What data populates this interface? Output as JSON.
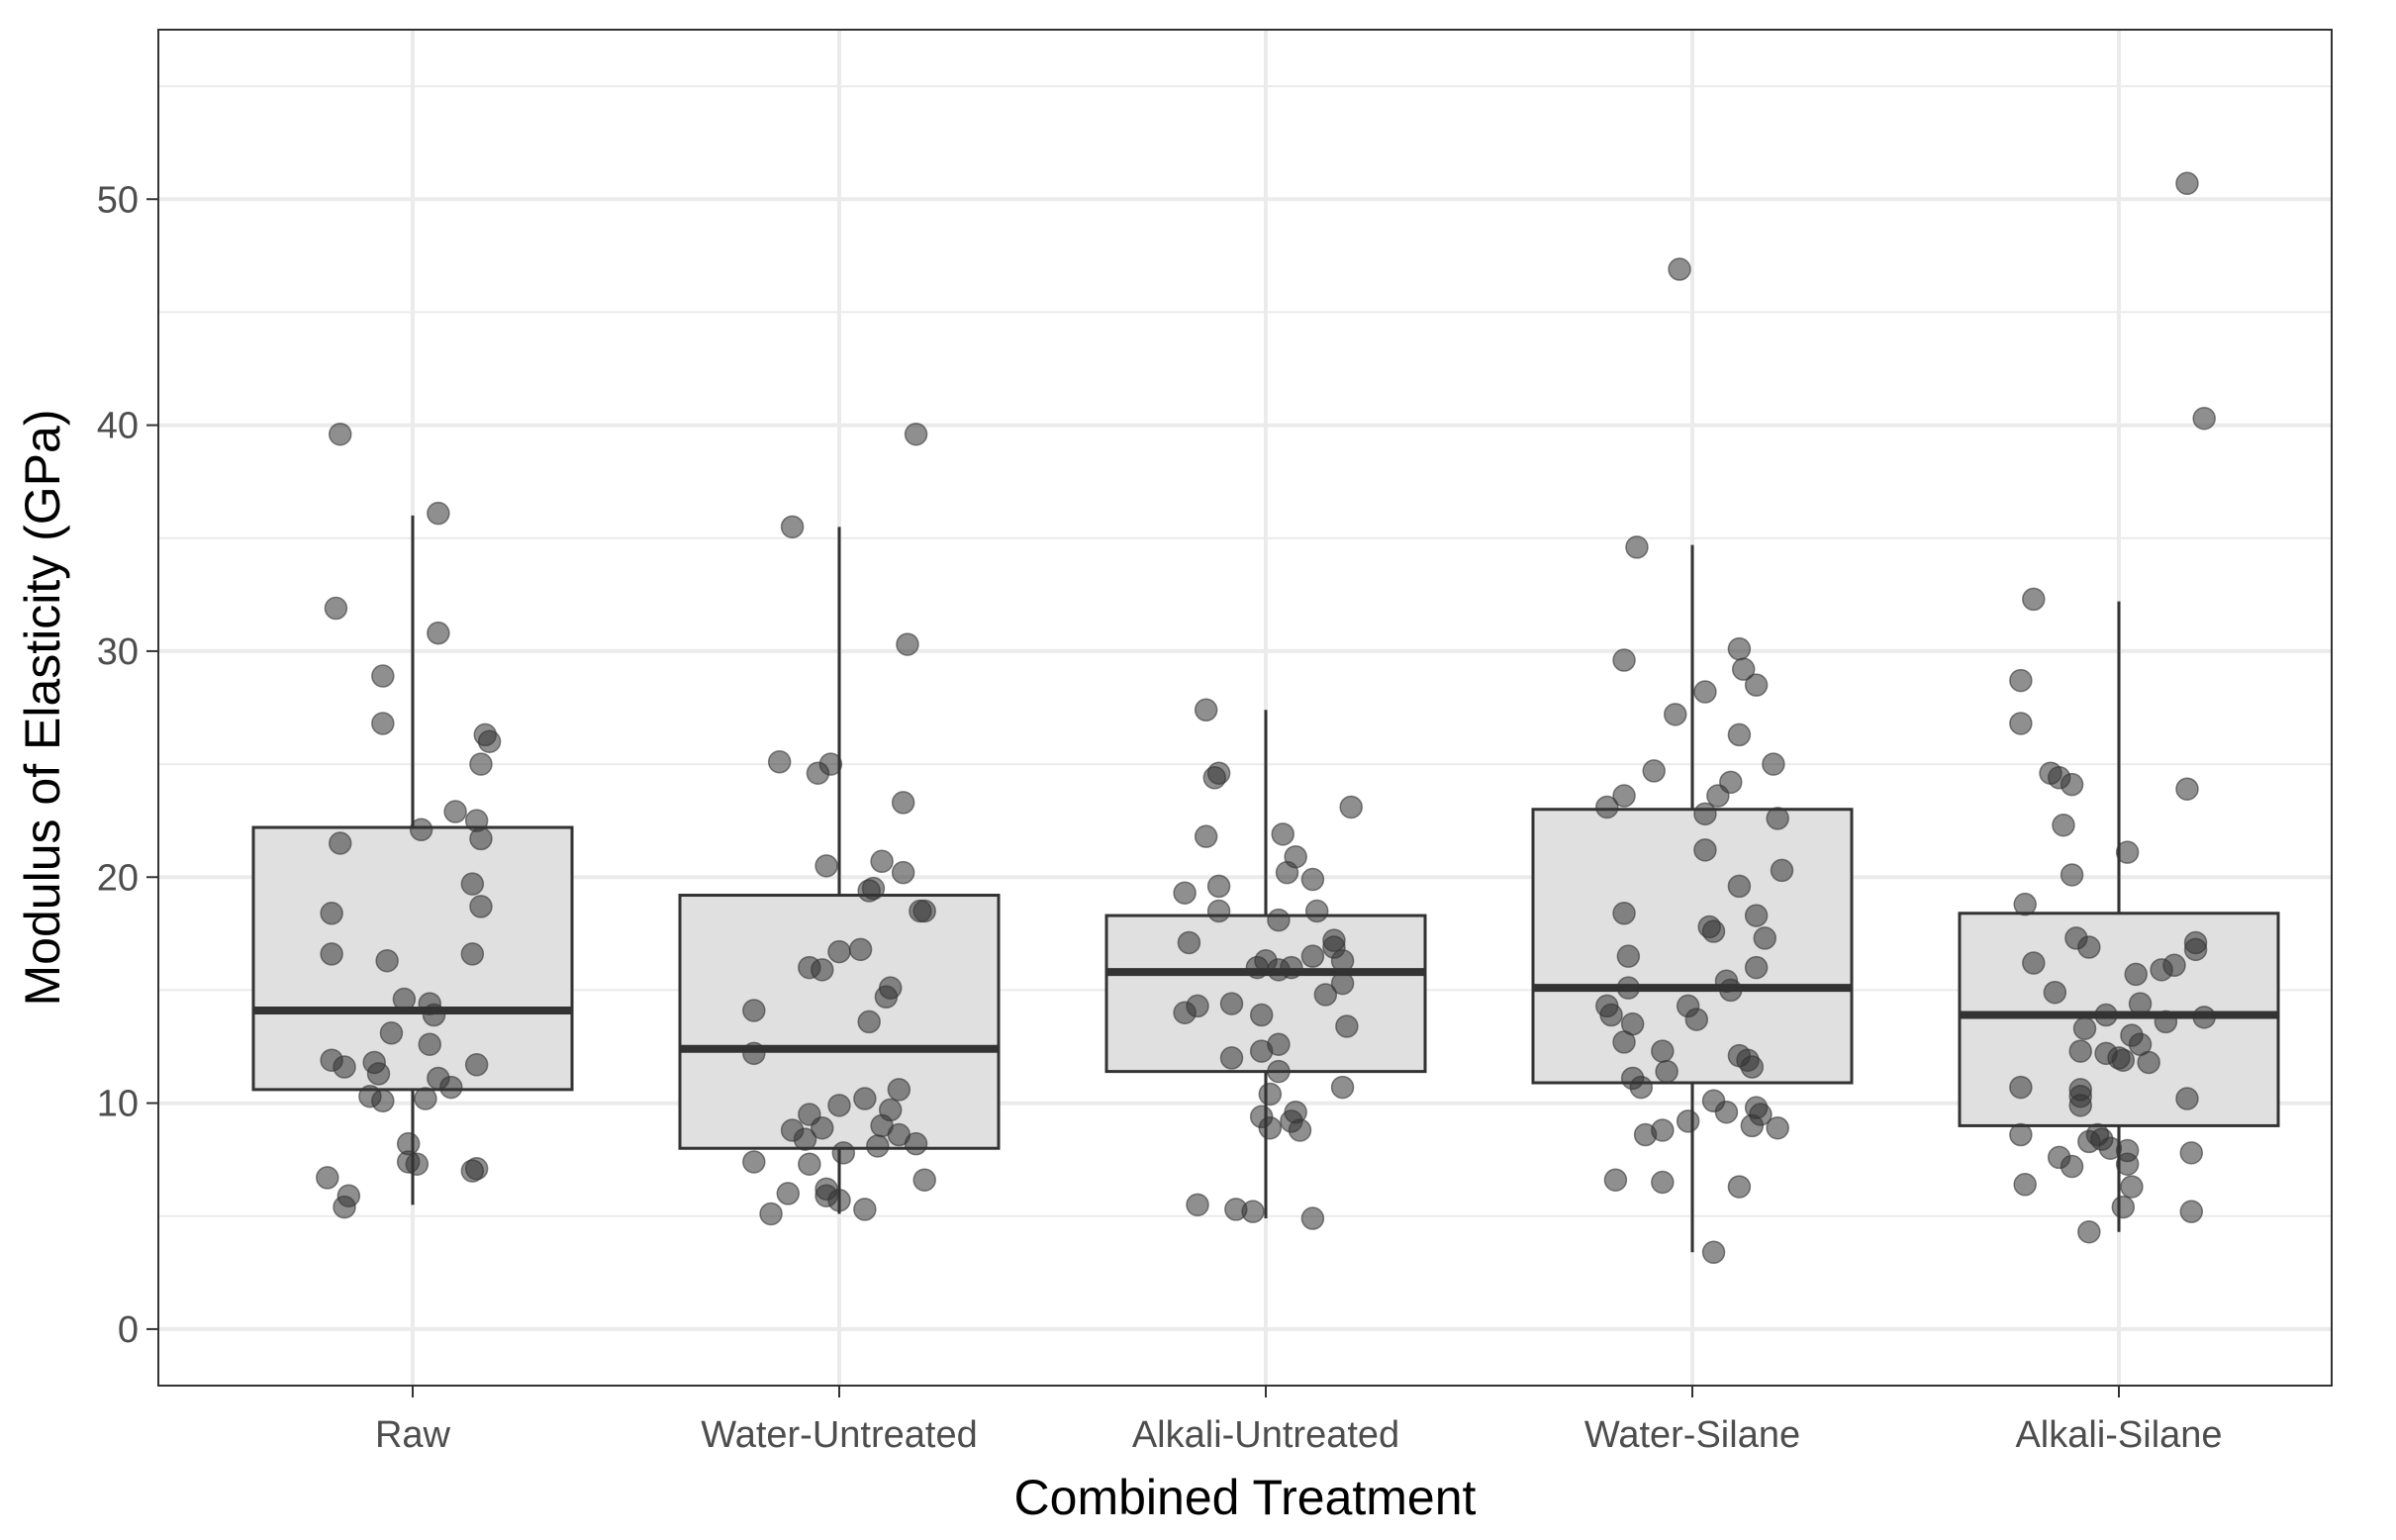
{
  "chart_data": {
    "type": "boxplot",
    "title": "",
    "xlabel": "Combined Treatment",
    "ylabel": "Modulus of Elasticity (GPa)",
    "ylim": [
      -2.5,
      57.5
    ],
    "yticks": [
      0,
      10,
      20,
      30,
      40,
      50
    ],
    "ytick_labels": [
      "0",
      "10",
      "20",
      "30",
      "40",
      "50"
    ],
    "y_minor_ticks": [
      5,
      15,
      25,
      35,
      45,
      55
    ],
    "grid": true,
    "theme": "bw",
    "colors": {
      "box_fill": "#e0e0e0",
      "box_stroke": "#333333",
      "point": "#333333",
      "grid": "#ebebeb",
      "panel_border": "#333333"
    },
    "categories": [
      "Raw",
      "Water-Untreated",
      "Alkali-Untreated",
      "Water-Silane",
      "Alkali-Silane"
    ],
    "boxes": [
      {
        "name": "Raw",
        "whisker_low": 5.5,
        "q1": 10.6,
        "median": 14.1,
        "q3": 22.2,
        "whisker_high": 36.0
      },
      {
        "name": "Water-Untreated",
        "whisker_low": 5.1,
        "q1": 8.0,
        "median": 12.4,
        "q3": 19.2,
        "whisker_high": 35.5
      },
      {
        "name": "Alkali-Untreated",
        "whisker_low": 4.9,
        "q1": 11.4,
        "median": 15.8,
        "q3": 18.3,
        "whisker_high": 27.4
      },
      {
        "name": "Water-Silane",
        "whisker_low": 3.4,
        "q1": 10.9,
        "median": 15.1,
        "q3": 23.0,
        "whisker_high": 34.7
      },
      {
        "name": "Alkali-Silane",
        "whisker_low": 4.3,
        "q1": 9.0,
        "median": 13.9,
        "q3": 18.4,
        "whisker_high": 32.2
      }
    ],
    "points": [
      {
        "group": "Raw",
        "values": [
          [
            -0.17,
            39.6
          ],
          [
            0.06,
            36.1
          ],
          [
            -0.18,
            31.9
          ],
          [
            0.06,
            30.8
          ],
          [
            -0.07,
            26.8
          ],
          [
            0.17,
            26.3
          ],
          [
            0.18,
            26.0
          ],
          [
            0.16,
            25.0
          ],
          [
            -0.07,
            28.9
          ],
          [
            -0.17,
            21.5
          ],
          [
            0.15,
            22.5
          ],
          [
            0.16,
            21.7
          ],
          [
            0.1,
            22.9
          ],
          [
            0.02,
            22.1
          ],
          [
            -0.19,
            18.4
          ],
          [
            0.14,
            19.7
          ],
          [
            0.16,
            18.7
          ],
          [
            -0.19,
            16.6
          ],
          [
            -0.06,
            16.3
          ],
          [
            0.14,
            16.6
          ],
          [
            -0.02,
            14.6
          ],
          [
            0.04,
            14.4
          ],
          [
            0.05,
            13.9
          ],
          [
            -0.05,
            13.1
          ],
          [
            0.04,
            12.6
          ],
          [
            -0.19,
            11.9
          ],
          [
            -0.16,
            11.6
          ],
          [
            -0.09,
            11.8
          ],
          [
            -0.08,
            11.3
          ],
          [
            0.15,
            11.7
          ],
          [
            0.06,
            11.1
          ],
          [
            0.09,
            10.7
          ],
          [
            -0.1,
            10.3
          ],
          [
            -0.07,
            10.1
          ],
          [
            0.03,
            10.2
          ],
          [
            -0.01,
            8.2
          ],
          [
            -0.01,
            7.4
          ],
          [
            0.01,
            7.3
          ],
          [
            0.14,
            7.0
          ],
          [
            0.15,
            7.1
          ],
          [
            -0.2,
            6.7
          ],
          [
            -0.15,
            5.9
          ],
          [
            -0.16,
            5.4
          ]
        ]
      },
      {
        "group": "Water-Untreated",
        "values": [
          [
            0.18,
            39.6
          ],
          [
            -0.11,
            35.5
          ],
          [
            0.16,
            30.3
          ],
          [
            -0.14,
            25.1
          ],
          [
            -0.05,
            24.6
          ],
          [
            -0.02,
            25.0
          ],
          [
            0.15,
            23.3
          ],
          [
            -0.03,
            20.5
          ],
          [
            0.1,
            20.7
          ],
          [
            0.15,
            20.2
          ],
          [
            0.07,
            19.4
          ],
          [
            0.08,
            19.5
          ],
          [
            0.19,
            18.5
          ],
          [
            0.2,
            18.5
          ],
          [
            0.0,
            16.7
          ],
          [
            -0.07,
            16.0
          ],
          [
            -0.04,
            15.9
          ],
          [
            0.05,
            16.8
          ],
          [
            0.12,
            15.1
          ],
          [
            0.11,
            14.7
          ],
          [
            0.07,
            13.6
          ],
          [
            -0.2,
            14.1
          ],
          [
            -0.2,
            12.2
          ],
          [
            -0.07,
            9.5
          ],
          [
            0.0,
            9.9
          ],
          [
            0.06,
            10.2
          ],
          [
            0.12,
            9.7
          ],
          [
            0.14,
            10.6
          ],
          [
            -0.11,
            8.8
          ],
          [
            -0.04,
            8.9
          ],
          [
            -0.08,
            8.4
          ],
          [
            0.1,
            9.0
          ],
          [
            0.14,
            8.6
          ],
          [
            0.18,
            8.2
          ],
          [
            -0.07,
            7.3
          ],
          [
            0.01,
            7.8
          ],
          [
            0.09,
            8.1
          ],
          [
            -0.2,
            7.4
          ],
          [
            0.2,
            6.6
          ],
          [
            -0.03,
            6.2
          ],
          [
            -0.12,
            6.0
          ],
          [
            0.0,
            5.7
          ],
          [
            -0.03,
            5.9
          ],
          [
            0.06,
            5.3
          ],
          [
            -0.16,
            5.1
          ]
        ]
      },
      {
        "group": "Alkali-Untreated",
        "values": [
          [
            -0.14,
            27.4
          ],
          [
            -0.12,
            24.4
          ],
          [
            -0.11,
            24.6
          ],
          [
            0.04,
            21.9
          ],
          [
            -0.14,
            21.8
          ],
          [
            0.07,
            20.9
          ],
          [
            0.2,
            23.1
          ],
          [
            0.05,
            20.2
          ],
          [
            -0.11,
            19.6
          ],
          [
            -0.19,
            19.3
          ],
          [
            0.11,
            19.9
          ],
          [
            0.03,
            18.1
          ],
          [
            0.12,
            18.5
          ],
          [
            -0.11,
            18.5
          ],
          [
            -0.18,
            17.1
          ],
          [
            0.16,
            17.2
          ],
          [
            0.16,
            16.9
          ],
          [
            -0.02,
            16.0
          ],
          [
            0.0,
            16.3
          ],
          [
            0.06,
            16.0
          ],
          [
            0.11,
            16.5
          ],
          [
            0.18,
            16.3
          ],
          [
            0.18,
            15.3
          ],
          [
            0.14,
            14.8
          ],
          [
            0.03,
            15.9
          ],
          [
            -0.08,
            14.4
          ],
          [
            -0.01,
            13.9
          ],
          [
            -0.19,
            14.0
          ],
          [
            -0.16,
            14.3
          ],
          [
            0.19,
            13.4
          ],
          [
            0.03,
            12.6
          ],
          [
            -0.01,
            12.3
          ],
          [
            -0.08,
            12.0
          ],
          [
            0.03,
            11.4
          ],
          [
            0.18,
            10.7
          ],
          [
            0.01,
            10.4
          ],
          [
            0.07,
            9.6
          ],
          [
            0.06,
            9.2
          ],
          [
            0.08,
            8.8
          ],
          [
            0.01,
            8.9
          ],
          [
            -0.01,
            9.4
          ],
          [
            -0.16,
            5.5
          ],
          [
            -0.07,
            5.3
          ],
          [
            -0.03,
            5.2
          ],
          [
            0.11,
            4.9
          ]
        ]
      },
      {
        "group": "Water-Silane",
        "values": [
          [
            -0.03,
            46.9
          ],
          [
            -0.13,
            34.6
          ],
          [
            -0.16,
            29.6
          ],
          [
            0.11,
            30.1
          ],
          [
            0.12,
            29.2
          ],
          [
            0.15,
            28.5
          ],
          [
            0.03,
            28.2
          ],
          [
            -0.04,
            27.2
          ],
          [
            0.11,
            26.3
          ],
          [
            0.19,
            25.0
          ],
          [
            -0.09,
            24.7
          ],
          [
            0.09,
            24.2
          ],
          [
            0.06,
            23.6
          ],
          [
            -0.16,
            23.6
          ],
          [
            -0.2,
            23.1
          ],
          [
            0.03,
            22.8
          ],
          [
            0.2,
            22.6
          ],
          [
            0.21,
            20.3
          ],
          [
            0.03,
            21.2
          ],
          [
            0.11,
            19.6
          ],
          [
            0.15,
            18.3
          ],
          [
            0.04,
            17.8
          ],
          [
            0.05,
            17.6
          ],
          [
            0.17,
            17.3
          ],
          [
            -0.16,
            18.4
          ],
          [
            -0.15,
            16.5
          ],
          [
            0.15,
            16.0
          ],
          [
            -0.15,
            15.1
          ],
          [
            0.08,
            15.4
          ],
          [
            0.09,
            15.0
          ],
          [
            -0.01,
            14.3
          ],
          [
            0.01,
            13.7
          ],
          [
            -0.2,
            14.3
          ],
          [
            -0.19,
            13.9
          ],
          [
            -0.14,
            13.5
          ],
          [
            -0.16,
            12.7
          ],
          [
            -0.07,
            12.3
          ],
          [
            0.11,
            12.1
          ],
          [
            0.13,
            11.9
          ],
          [
            0.14,
            11.6
          ],
          [
            -0.06,
            11.4
          ],
          [
            -0.14,
            11.1
          ],
          [
            -0.12,
            10.7
          ],
          [
            0.05,
            10.1
          ],
          [
            0.15,
            9.8
          ],
          [
            0.16,
            9.5
          ],
          [
            0.08,
            9.6
          ],
          [
            -0.01,
            9.2
          ],
          [
            0.14,
            9.0
          ],
          [
            0.2,
            8.9
          ],
          [
            -0.07,
            8.8
          ],
          [
            -0.11,
            8.6
          ],
          [
            -0.18,
            6.6
          ],
          [
            -0.07,
            6.5
          ],
          [
            0.11,
            6.3
          ],
          [
            0.05,
            3.4
          ]
        ]
      },
      {
        "group": "Alkali-Silane",
        "values": [
          [
            0.16,
            50.7
          ],
          [
            0.2,
            40.3
          ],
          [
            -0.2,
            32.3
          ],
          [
            -0.23,
            28.7
          ],
          [
            -0.23,
            26.8
          ],
          [
            -0.16,
            24.6
          ],
          [
            -0.14,
            24.4
          ],
          [
            0.16,
            23.9
          ],
          [
            -0.11,
            24.1
          ],
          [
            -0.13,
            22.3
          ],
          [
            0.02,
            21.1
          ],
          [
            -0.11,
            20.1
          ],
          [
            -0.22,
            18.8
          ],
          [
            -0.1,
            17.3
          ],
          [
            -0.07,
            16.9
          ],
          [
            0.18,
            17.1
          ],
          [
            0.18,
            16.8
          ],
          [
            -0.2,
            16.2
          ],
          [
            0.13,
            16.1
          ],
          [
            0.1,
            15.9
          ],
          [
            0.04,
            15.7
          ],
          [
            -0.15,
            14.9
          ],
          [
            0.05,
            14.4
          ],
          [
            0.11,
            13.6
          ],
          [
            0.2,
            13.8
          ],
          [
            -0.03,
            13.9
          ],
          [
            -0.08,
            13.3
          ],
          [
            0.03,
            13.0
          ],
          [
            -0.03,
            12.2
          ],
          [
            0.05,
            12.6
          ],
          [
            -0.09,
            12.3
          ],
          [
            0.07,
            11.8
          ],
          [
            0.0,
            12.0
          ],
          [
            0.01,
            11.9
          ],
          [
            -0.09,
            10.3
          ],
          [
            -0.09,
            10.6
          ],
          [
            -0.23,
            10.7
          ],
          [
            0.16,
            10.2
          ],
          [
            -0.09,
            9.9
          ],
          [
            -0.05,
            8.6
          ],
          [
            -0.04,
            8.4
          ],
          [
            -0.07,
            8.3
          ],
          [
            -0.23,
            8.6
          ],
          [
            -0.02,
            8.0
          ],
          [
            0.02,
            7.9
          ],
          [
            0.02,
            7.3
          ],
          [
            0.17,
            7.8
          ],
          [
            -0.14,
            7.6
          ],
          [
            -0.11,
            7.2
          ],
          [
            0.03,
            6.3
          ],
          [
            -0.22,
            6.4
          ],
          [
            0.01,
            5.4
          ],
          [
            0.17,
            5.2
          ],
          [
            -0.07,
            4.3
          ]
        ]
      }
    ]
  }
}
